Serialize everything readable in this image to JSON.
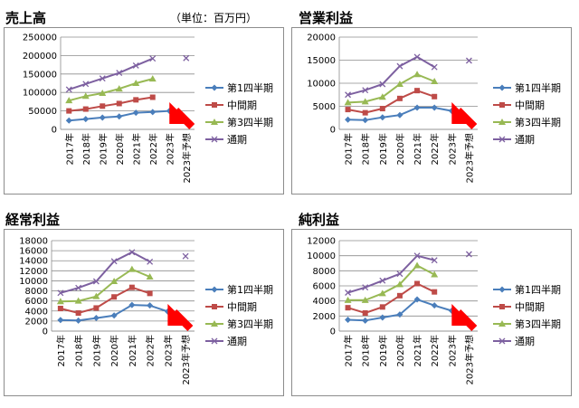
{
  "unit_label": "（単位：百万円）",
  "arrow_color": "#ff0000",
  "chart_data": [
    {
      "type": "line",
      "title": "売上高",
      "categories": [
        "2017年",
        "2018年",
        "2019年",
        "2020年",
        "2021年",
        "2022年",
        "2023年",
        "2023年予想"
      ],
      "ylim": [
        0,
        250000
      ],
      "yticks": [
        "0",
        "50000",
        "100000",
        "150000",
        "200000",
        "250000"
      ],
      "grid": true,
      "legend": "right",
      "series": [
        {
          "name": "第1四半期",
          "color": "#4a7ebb",
          "marker": "diamond",
          "values": [
            24000,
            28000,
            32000,
            35000,
            45000,
            47000,
            50000,
            null
          ]
        },
        {
          "name": "中間期",
          "color": "#be4b48",
          "marker": "square",
          "values": [
            50000,
            55000,
            63000,
            70000,
            80000,
            87000,
            null,
            null
          ]
        },
        {
          "name": "第3四半期",
          "color": "#98b954",
          "marker": "triangle",
          "values": [
            78000,
            90000,
            98000,
            110000,
            125000,
            137000,
            null,
            null
          ]
        },
        {
          "name": "通期",
          "color": "#7d60a0",
          "marker": "x",
          "values": [
            108000,
            123000,
            138000,
            153000,
            173000,
            192000,
            null,
            193000
          ]
        }
      ]
    },
    {
      "type": "line",
      "title": "営業利益",
      "categories": [
        "2017年",
        "2018年",
        "2019年",
        "2020年",
        "2021年",
        "2022年",
        "2023年",
        "2023年予想"
      ],
      "ylim": [
        0,
        20000
      ],
      "yticks": [
        "0",
        "5000",
        "10000",
        "15000",
        "20000"
      ],
      "grid": true,
      "legend": "right",
      "series": [
        {
          "name": "第1四半期",
          "color": "#4a7ebb",
          "marker": "diamond",
          "values": [
            2100,
            2000,
            2600,
            3100,
            4700,
            4700,
            4000,
            null
          ]
        },
        {
          "name": "中間期",
          "color": "#be4b48",
          "marker": "square",
          "values": [
            4300,
            3600,
            4500,
            6700,
            8400,
            7100,
            null,
            null
          ]
        },
        {
          "name": "第3四半期",
          "color": "#98b954",
          "marker": "triangle",
          "values": [
            5800,
            6000,
            7000,
            9800,
            11900,
            10400,
            null,
            null
          ]
        },
        {
          "name": "通期",
          "color": "#7d60a0",
          "marker": "x",
          "values": [
            7500,
            8500,
            9800,
            13700,
            15700,
            13500,
            null,
            14900
          ]
        }
      ]
    },
    {
      "type": "line",
      "title": "経常利益",
      "categories": [
        "2017年",
        "2018年",
        "2019年",
        "2020年",
        "2021年",
        "2022年",
        "2023年",
        "2023年予想"
      ],
      "ylim": [
        0,
        18000
      ],
      "yticks": [
        "0",
        "2000",
        "4000",
        "6000",
        "8000",
        "10000",
        "12000",
        "14000",
        "16000",
        "18000"
      ],
      "grid": true,
      "legend": "right",
      "series": [
        {
          "name": "第1四半期",
          "color": "#4a7ebb",
          "marker": "diamond",
          "values": [
            2200,
            2100,
            2600,
            3100,
            5200,
            5100,
            3900,
            null
          ]
        },
        {
          "name": "中間期",
          "color": "#be4b48",
          "marker": "square",
          "values": [
            4500,
            3600,
            4600,
            6800,
            8700,
            7500,
            null,
            null
          ]
        },
        {
          "name": "第3四半期",
          "color": "#98b954",
          "marker": "triangle",
          "values": [
            5900,
            6000,
            6900,
            9900,
            12300,
            10800,
            null,
            null
          ]
        },
        {
          "name": "通期",
          "color": "#7d60a0",
          "marker": "x",
          "values": [
            7600,
            8600,
            9900,
            13900,
            15700,
            13800,
            null,
            14900
          ]
        }
      ]
    },
    {
      "type": "line",
      "title": "純利益",
      "categories": [
        "2017年",
        "2018年",
        "2019年",
        "2020年",
        "2021年",
        "2022年",
        "2023年",
        "2023年予想"
      ],
      "ylim": [
        0,
        12000
      ],
      "yticks": [
        "0",
        "2000",
        "4000",
        "6000",
        "8000",
        "10000",
        "12000"
      ],
      "grid": true,
      "legend": "right",
      "series": [
        {
          "name": "第1四半期",
          "color": "#4a7ebb",
          "marker": "diamond",
          "values": [
            1500,
            1400,
            1800,
            2200,
            4200,
            3400,
            2700,
            null
          ]
        },
        {
          "name": "中間期",
          "color": "#be4b48",
          "marker": "square",
          "values": [
            3100,
            2400,
            3200,
            4700,
            6300,
            5200,
            null,
            null
          ]
        },
        {
          "name": "第3四半期",
          "color": "#98b954",
          "marker": "triangle",
          "values": [
            4100,
            4100,
            5000,
            6200,
            8700,
            7500,
            null,
            null
          ]
        },
        {
          "name": "通期",
          "color": "#7d60a0",
          "marker": "x",
          "values": [
            5100,
            5800,
            6700,
            7600,
            10000,
            9400,
            null,
            10200
          ]
        }
      ]
    }
  ]
}
